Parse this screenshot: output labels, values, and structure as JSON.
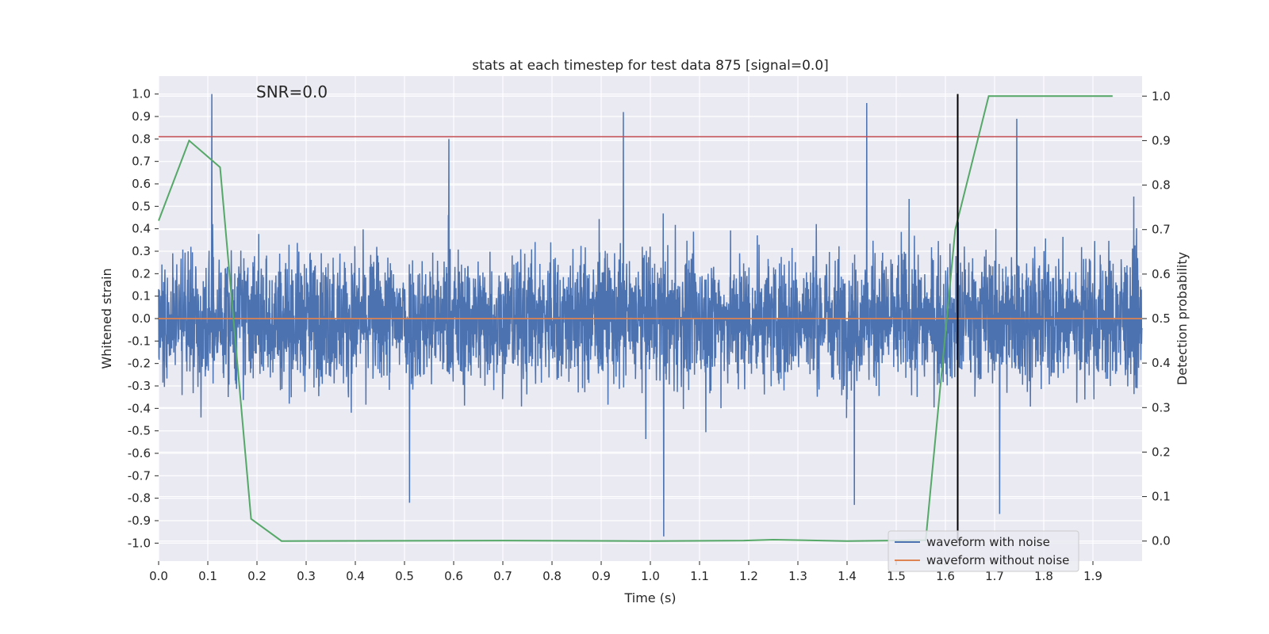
{
  "chart_data": {
    "type": "line",
    "title": "stats at each timestep for test data 875 [signal=0.0]",
    "annotation": "SNR=0.0",
    "xlabel": "Time (s)",
    "ylabel_left": "Whitened strain",
    "ylabel_right": "Detection probability",
    "xlim": [
      0.0,
      2.0
    ],
    "ylim_left": [
      -1.08,
      1.08
    ],
    "ylim_right": [
      -0.045,
      1.045
    ],
    "x_ticks": [
      "0.0",
      "0.1",
      "0.2",
      "0.3",
      "0.4",
      "0.5",
      "0.6",
      "0.7",
      "0.8",
      "0.9",
      "1.0",
      "1.1",
      "1.2",
      "1.3",
      "1.4",
      "1.5",
      "1.6",
      "1.7",
      "1.8",
      "1.9"
    ],
    "y_left_ticks": [
      "1.0",
      "0.9",
      "0.8",
      "0.7",
      "0.6",
      "0.5",
      "0.4",
      "0.3",
      "0.2",
      "0.1",
      "0.0",
      "-0.1",
      "-0.2",
      "-0.3",
      "-0.4",
      "-0.5",
      "-0.6",
      "-0.7",
      "-0.8",
      "-0.9",
      "-1.0"
    ],
    "y_right_ticks": [
      "1.0",
      "0.9",
      "0.8",
      "0.7",
      "0.6",
      "0.5",
      "0.4",
      "0.3",
      "0.2",
      "0.1",
      "0.0"
    ],
    "grid": true,
    "legend_position": "bottom-right",
    "series": [
      {
        "name": "waveform with noise",
        "axis": "left",
        "color": "#4c72b0",
        "style": "dense noise, amplitude about ±0.5, peaks near 1.0 at t=0.108 and -0.97 at t=1.027",
        "peaks": [
          {
            "x": 0.108,
            "y": 1.0
          },
          {
            "x": 0.945,
            "y": 0.92
          },
          {
            "x": 1.44,
            "y": 0.96
          },
          {
            "x": 1.027,
            "y": -0.97
          },
          {
            "x": 0.59,
            "y": 0.8
          },
          {
            "x": 1.745,
            "y": 0.89
          },
          {
            "x": 0.51,
            "y": -0.82
          },
          {
            "x": 1.415,
            "y": -0.83
          },
          {
            "x": 1.71,
            "y": -0.87
          }
        ]
      },
      {
        "name": "waveform without noise",
        "axis": "left",
        "color": "#dd8452",
        "x": [
          0.0,
          2.0
        ],
        "y": [
          0.0,
          0.0
        ]
      },
      {
        "name": "detection probability",
        "axis": "right",
        "color": "#55a868",
        "x": [
          0.0,
          0.062,
          0.125,
          0.188,
          0.25,
          0.7,
          1.0,
          1.19,
          1.25,
          1.4,
          1.56,
          1.62,
          1.688,
          1.94
        ],
        "y": [
          0.72,
          0.9,
          0.84,
          0.05,
          0.0,
          0.001,
          0.0,
          0.001,
          0.003,
          0.0,
          0.002,
          0.7,
          1.0,
          1.0
        ]
      }
    ],
    "hlines": [
      {
        "axis": "left",
        "y": 0.81,
        "color": "#c44e52"
      }
    ],
    "vlines": [
      {
        "x": 1.625,
        "ymin": -1.0,
        "ymax": 1.0,
        "color": "#000000"
      }
    ]
  }
}
